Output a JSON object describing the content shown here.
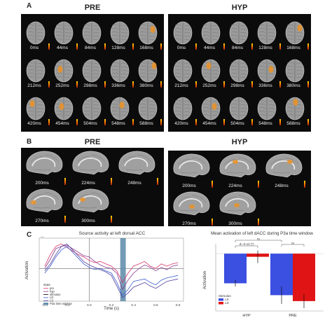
{
  "panel_a": {
    "letter": "A",
    "left_title": "PRE",
    "right_title": "HYP",
    "times_row1": [
      "0ms",
      "44ms",
      "84ms",
      "128ms",
      "168ms"
    ],
    "times_row2": [
      "212ms",
      "252ms",
      "298ms",
      "336ms",
      "380ms"
    ],
    "times_row3": [
      "420ms",
      "454ms",
      "504ms",
      "548ms",
      "588ms"
    ]
  },
  "panel_b": {
    "letter": "B",
    "left_title": "PRE",
    "right_title": "HYP",
    "times_row1": [
      "200ms",
      "224ms",
      "248ms"
    ],
    "times_row2": [
      "270ms",
      "300ms"
    ]
  },
  "panel_c": {
    "letter": "C"
  },
  "chart_data": [
    {
      "type": "line",
      "title": "Source activity at left dorsal ACC",
      "xlabel": "Time (s)",
      "ylabel": "Activation",
      "xlim": [
        -0.45,
        0.85
      ],
      "ylim": [
        -1.4,
        1.3
      ],
      "x_ticks": [
        "-0.4",
        "-0.2",
        "0.0",
        "0.2",
        "0.4",
        "0.6",
        "0.8"
      ],
      "top_tick": "1e",
      "shaded_window": [
        0.28,
        0.33
      ],
      "legend": {
        "title": "state",
        "entries": [
          "pre",
          "hyp",
          "stimulus",
          "LD",
          "LS",
          "P3a time window"
        ]
      },
      "x": [
        -0.4,
        -0.35,
        -0.3,
        -0.25,
        -0.2,
        -0.15,
        -0.1,
        -0.05,
        0.0,
        0.05,
        0.1,
        0.15,
        0.2,
        0.25,
        0.3,
        0.35,
        0.4,
        0.45,
        0.5,
        0.55,
        0.6,
        0.65,
        0.7,
        0.75,
        0.8
      ],
      "series": [
        {
          "color": "#d6336c",
          "values": [
            0.1,
            0.6,
            0.95,
            1.05,
            0.9,
            0.75,
            0.6,
            0.5,
            0.35,
            0.25,
            0.3,
            0.2,
            0.1,
            -0.1,
            -0.6,
            -0.2,
            0.1,
            0.2,
            0.3,
            0.1,
            0.0,
            0.2,
            0.1,
            0.2,
            0.25
          ]
        },
        {
          "color": "#8a3b8f",
          "values": [
            0.0,
            0.4,
            0.85,
            0.95,
            1.0,
            0.85,
            0.7,
            0.55,
            0.5,
            0.3,
            0.15,
            0.05,
            0.0,
            -0.2,
            -0.9,
            -0.5,
            -0.2,
            0.0,
            0.15,
            0.05,
            -0.1,
            0.05,
            -0.05,
            0.1,
            0.15
          ]
        },
        {
          "color": "#3b5bcc",
          "values": [
            -0.2,
            0.1,
            0.5,
            0.8,
            0.95,
            0.7,
            0.45,
            0.2,
            0.05,
            -0.05,
            0.0,
            -0.1,
            -0.2,
            -0.6,
            -1.15,
            -0.9,
            -0.55,
            -0.5,
            -0.45,
            -0.6,
            -0.7,
            -0.5,
            -0.4,
            -0.35,
            -0.3
          ]
        },
        {
          "color": "#4a3a9a",
          "values": [
            -0.1,
            0.2,
            0.6,
            0.95,
            1.05,
            0.8,
            0.55,
            0.3,
            0.15,
            0.05,
            -0.05,
            -0.15,
            -0.3,
            -0.75,
            -1.25,
            -1.05,
            -0.8,
            -0.7,
            -0.6,
            -0.75,
            -0.85,
            -0.7,
            -0.55,
            -0.5,
            -0.45
          ]
        }
      ]
    },
    {
      "type": "bar",
      "title": "Mean activation of left dACC during P3a time window",
      "xlabel": "",
      "ylabel": "Activation",
      "categories": [
        "HYP",
        "PRE"
      ],
      "ylim": [
        -1.45,
        0.25
      ],
      "annotation": "d=-0.12 (*)",
      "sig_labels": [
        "ns",
        "ns"
      ],
      "legend": {
        "title": "Stimulus",
        "entries": [
          "LS",
          "LD"
        ]
      },
      "series": [
        {
          "name": "LS",
          "color": "#3b4fe0",
          "values": [
            -0.75,
            -1.05
          ],
          "err": [
            0.08,
            0.22
          ]
        },
        {
          "name": "LD",
          "color": "#e01414",
          "values": [
            -0.08,
            -1.2
          ],
          "err": [
            0.16,
            0.18
          ]
        }
      ]
    }
  ]
}
